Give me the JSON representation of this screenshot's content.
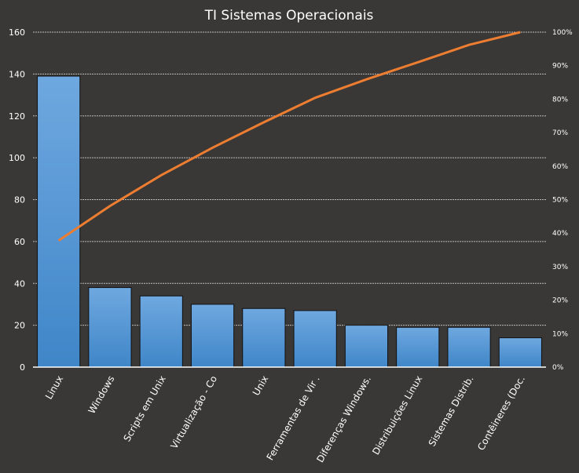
{
  "chart_data": {
    "type": "bar",
    "title": "TI Sistemas Operacionais",
    "categories": [
      "Linux",
      "Windows",
      "Scripts em Unix",
      "Virtualização - Co",
      "Unix",
      "Ferramentas de Vir .",
      "Diferenças Windows.",
      "Distribuições Linux",
      "Sistemas Distrib.",
      "Contêineres (Doc."
    ],
    "series": [
      {
        "type": "bar",
        "values": [
          139,
          38,
          34,
          30,
          28,
          27,
          20,
          19,
          19,
          14
        ]
      },
      {
        "type": "line",
        "axis": "right",
        "values": [
          37.8,
          48.1,
          57.3,
          65.5,
          73.1,
          80.4,
          85.9,
          91.0,
          96.2,
          100
        ]
      }
    ],
    "ylim": [
      0,
      160
    ],
    "yticks": [
      "0",
      "20",
      "40",
      "60",
      "80",
      "100",
      "120",
      "140",
      "160"
    ],
    "y2lim": [
      0,
      100
    ],
    "y2ticks": [
      "0%",
      "10%",
      "20%",
      "30%",
      "40%",
      "50%",
      "60%",
      "70%",
      "80%",
      "90%",
      "100%"
    ],
    "grid": true,
    "colors": {
      "bar": "#4a8fd4",
      "line": "#ed7d31",
      "background": "#3a3836"
    }
  }
}
